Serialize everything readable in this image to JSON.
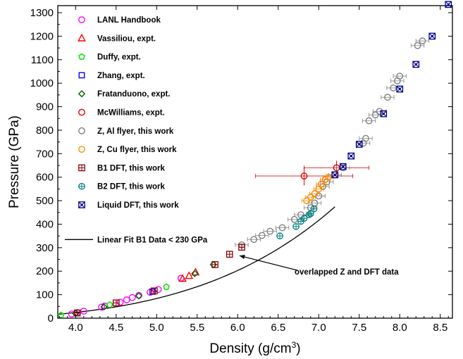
{
  "chart_data": {
    "type": "scatter",
    "title": "",
    "xlabel": "Density (g/cm",
    "xlabel_sup": "3",
    "xlabel_tail": ")",
    "ylabel": "Pressure (GPa)",
    "xlim": [
      3.78,
      8.65
    ],
    "ylim": [
      0,
      1330
    ],
    "x_ticks": [
      4.0,
      4.5,
      5.0,
      5.5,
      6.0,
      6.5,
      7.0,
      7.5,
      8.0,
      8.5
    ],
    "x_tick_labels": [
      "4.0",
      "4.5",
      "5.0",
      "5.5",
      "6.0",
      "6.5",
      "7.0",
      "7.5",
      "8.0",
      "8.5"
    ],
    "y_ticks": [
      0,
      100,
      200,
      300,
      400,
      500,
      600,
      700,
      800,
      900,
      1000,
      1100,
      1200,
      1300
    ],
    "y_tick_labels": [
      "0",
      "100",
      "200",
      "300",
      "400",
      "500",
      "600",
      "700",
      "800",
      "900",
      "1000",
      "1100",
      "1200",
      "1300"
    ],
    "grid": false,
    "legend_position": "top-left",
    "series": [
      {
        "name": "LANL Handbook",
        "marker": "circle",
        "color": "#ff00ff",
        "points": [
          [
            3.95,
            18
          ],
          [
            4.02,
            24
          ],
          [
            4.1,
            30
          ],
          [
            4.32,
            47
          ],
          [
            4.36,
            52
          ],
          [
            4.55,
            68
          ],
          [
            4.63,
            78
          ],
          [
            4.7,
            88
          ],
          [
            4.78,
            97
          ],
          [
            4.92,
            110
          ],
          [
            5.02,
            122
          ],
          [
            5.3,
            170
          ]
        ]
      },
      {
        "name": "Vassiliou, expt.",
        "marker": "triangle",
        "color": "#ff0000",
        "points": [
          [
            5.32,
            168
          ],
          [
            5.4,
            180
          ],
          [
            5.48,
            195
          ]
        ]
      },
      {
        "name": "Duffy, expt.",
        "marker": "pentagon",
        "color": "#00dd00",
        "points": [
          [
            3.82,
            13
          ],
          [
            4.42,
            57
          ],
          [
            5.12,
            133
          ]
        ]
      },
      {
        "name": "Zhang, expt.",
        "marker": "square",
        "color": "#0000ff",
        "points": [
          [
            4.95,
            113
          ]
        ]
      },
      {
        "name": "Fratanduono, expt.",
        "marker": "diamond",
        "color": "#006400",
        "points": [
          [
            4.0,
            20
          ],
          [
            4.35,
            48
          ],
          [
            4.78,
            95
          ],
          [
            5.47,
            190
          ],
          [
            5.7,
            228
          ]
        ]
      },
      {
        "name": "McWilliams, expt.",
        "marker": "circle",
        "color": "#dd0000",
        "points": [
          [
            6.82,
            605
          ],
          [
            7.22,
            640
          ]
        ],
        "xerr": [
          0.6,
          0.4
        ],
        "yerr": [
          40,
          30
        ]
      },
      {
        "name": "Z, Al flyer, this work",
        "marker": "circle",
        "color": "#808080",
        "points": [
          [
            6.05,
            312
          ],
          [
            6.2,
            335
          ],
          [
            6.3,
            352
          ],
          [
            6.4,
            370
          ],
          [
            6.55,
            385
          ],
          [
            6.7,
            420
          ],
          [
            6.78,
            440
          ],
          [
            6.9,
            470
          ],
          [
            6.95,
            490
          ],
          [
            7.0,
            520
          ],
          [
            7.05,
            560
          ],
          [
            7.1,
            580
          ],
          [
            7.2,
            610
          ],
          [
            7.3,
            640
          ],
          [
            7.55,
            745
          ],
          [
            7.58,
            765
          ],
          [
            7.62,
            840
          ],
          [
            7.7,
            865
          ],
          [
            7.75,
            880
          ],
          [
            7.85,
            940
          ],
          [
            7.92,
            980
          ],
          [
            7.97,
            1010
          ],
          [
            8.0,
            1030
          ],
          [
            8.22,
            1160
          ],
          [
            8.28,
            1180
          ]
        ],
        "xerr": 0.08
      },
      {
        "name": "Z, Cu flyer, this work",
        "marker": "circle",
        "color": "#ff8c00",
        "points": [
          [
            6.85,
            500
          ],
          [
            6.9,
            515
          ],
          [
            6.95,
            530
          ],
          [
            7.0,
            550
          ],
          [
            7.03,
            570
          ],
          [
            7.08,
            590
          ],
          [
            7.12,
            600
          ]
        ],
        "xerr": 0.06
      },
      {
        "name": "B1 DFT, this work",
        "marker": "square-plus",
        "color": "#8b0000",
        "points": [
          [
            4.02,
            22
          ],
          [
            4.5,
            65
          ],
          [
            4.97,
            116
          ],
          [
            5.72,
            228
          ],
          [
            5.9,
            272
          ],
          [
            6.05,
            302
          ]
        ]
      },
      {
        "name": "B2 DFT, this work",
        "marker": "circle-plus",
        "color": "#008080",
        "points": [
          [
            6.52,
            350
          ],
          [
            6.72,
            390
          ],
          [
            6.78,
            412
          ],
          [
            6.82,
            425
          ],
          [
            6.88,
            440
          ],
          [
            6.9,
            445
          ],
          [
            6.94,
            465
          ]
        ]
      },
      {
        "name": "Liquid DFT, this work",
        "marker": "square-x",
        "color": "#00008b",
        "points": [
          [
            7.2,
            610
          ],
          [
            7.3,
            645
          ],
          [
            7.4,
            690
          ],
          [
            7.5,
            740
          ],
          [
            7.8,
            870
          ],
          [
            8.0,
            975
          ],
          [
            8.2,
            1080
          ],
          [
            8.4,
            1200
          ],
          [
            8.6,
            1335
          ]
        ]
      }
    ],
    "fit_line": {
      "name": "Linear Fit B1 Data < 230 GPa",
      "color": "#000000"
    },
    "annotations": [
      {
        "text": "overlapped Z and DFT data",
        "target": [
          5.97,
          275
        ]
      }
    ]
  }
}
